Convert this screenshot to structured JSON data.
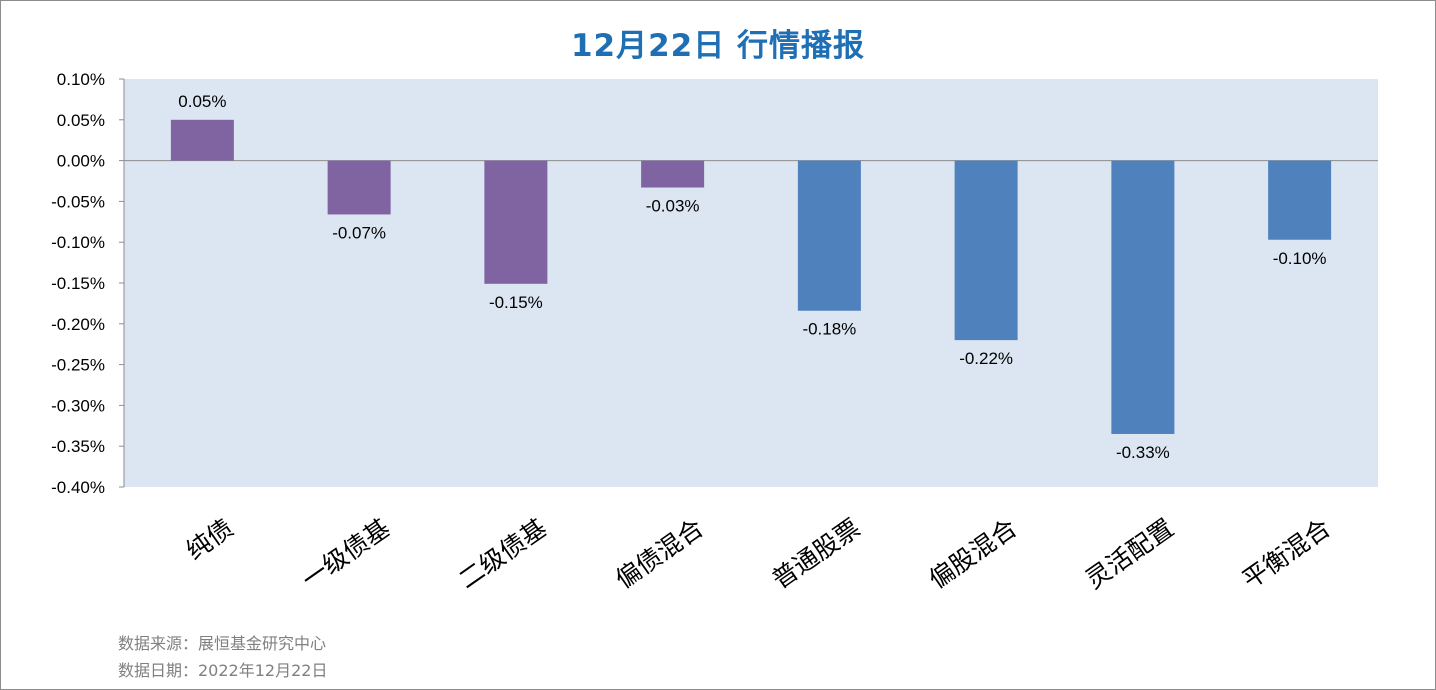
{
  "chart_data": {
    "type": "bar",
    "title": "12月22日  行情播报",
    "categories": [
      "纯债",
      "一级债基",
      "二级债基",
      "偏债混合",
      "普通股票",
      "偏股混合",
      "灵活配置",
      "平衡混合"
    ],
    "values": [
      0.05,
      -0.066,
      -0.151,
      -0.033,
      -0.184,
      -0.22,
      -0.335,
      -0.097
    ],
    "data_labels": [
      "0.05%",
      "-0.07%",
      "-0.15%",
      "-0.03%",
      "-0.18%",
      "-0.22%",
      "-0.33%",
      "-0.10%"
    ],
    "y_ticks": [
      0.1,
      0.05,
      0.0,
      -0.05,
      -0.1,
      -0.15,
      -0.2,
      -0.25,
      -0.3,
      -0.35,
      -0.4
    ],
    "y_tick_labels": [
      "0.10%",
      "0.05%",
      "0.00%",
      "-0.05%",
      "-0.10%",
      "-0.15%",
      "-0.20%",
      "-0.25%",
      "-0.30%",
      "-0.35%",
      "-0.40%"
    ],
    "ylim": [
      -0.4,
      0.1
    ],
    "unit": "%",
    "grid": false,
    "legend": "none",
    "colors": {
      "bond_group": "#8064a2",
      "equity_group": "#4f81bd",
      "plot_background": "#dce6f2",
      "title": "#1f6fb5"
    },
    "bar_groups": [
      "bond_group",
      "bond_group",
      "bond_group",
      "bond_group",
      "equity_group",
      "equity_group",
      "equity_group",
      "equity_group"
    ]
  },
  "footer": {
    "source": "数据来源：展恒基金研究中心",
    "date": "数据日期：2022年12月22日"
  }
}
